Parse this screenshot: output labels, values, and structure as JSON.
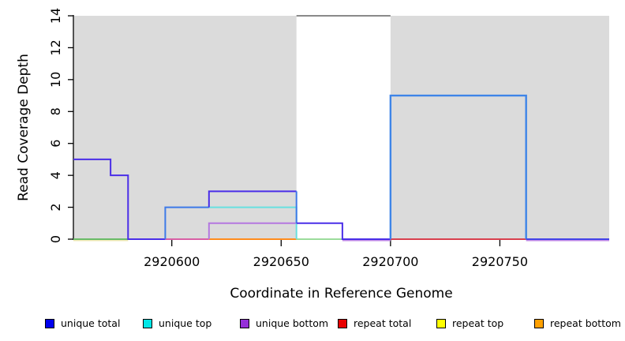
{
  "figure": {
    "background": "#ffffff",
    "shaded_region_color": "#dbdbdb"
  },
  "chart_data": {
    "type": "line",
    "subtype": "step-coverage",
    "title": "",
    "xlabel": "Coordinate in Reference Genome",
    "ylabel": "Read Coverage Depth",
    "xlim": [
      2920555,
      2920800
    ],
    "ylim": [
      0,
      14
    ],
    "grid": false,
    "legend_position": "bottom",
    "x_ticks": [
      {
        "value": 2920600,
        "label": "2920600"
      },
      {
        "value": 2920650,
        "label": "2920650"
      },
      {
        "value": 2920700,
        "label": "2920700"
      },
      {
        "value": 2920750,
        "label": "2920750"
      }
    ],
    "y_ticks": [
      {
        "value": 0,
        "label": "0"
      },
      {
        "value": 2,
        "label": "2"
      },
      {
        "value": 4,
        "label": "4"
      },
      {
        "value": 6,
        "label": "6"
      },
      {
        "value": 8,
        "label": "8"
      },
      {
        "value": 10,
        "label": "10"
      },
      {
        "value": 12,
        "label": "12"
      },
      {
        "value": 14,
        "label": "14"
      }
    ],
    "shaded_regions": [
      {
        "x1": 2920555,
        "x2": 2920657,
        "color": "#dbdbdb"
      },
      {
        "x1": 2920700,
        "x2": 2920800,
        "color": "#dbdbdb"
      }
    ],
    "gap_top_line": {
      "x1": 2920657,
      "x2": 2920700,
      "y": 14,
      "color": "#8a8a8a",
      "width": 2
    },
    "series": [
      {
        "name": "unique total",
        "color": "#0000ee",
        "steps": [
          [
            2920555,
            5
          ],
          [
            2920572,
            4
          ],
          [
            2920580,
            0
          ],
          [
            2920597,
            2
          ],
          [
            2920617,
            3
          ],
          [
            2920657,
            1
          ],
          [
            2920678,
            0
          ],
          [
            2920700,
            9
          ],
          [
            2920762,
            0
          ],
          [
            2920800,
            0
          ]
        ]
      },
      {
        "name": "unique top",
        "color": "#00e6e6",
        "steps": [
          [
            2920555,
            0
          ],
          [
            2920597,
            2
          ],
          [
            2920657,
            0
          ],
          [
            2920800,
            0
          ]
        ]
      },
      {
        "name": "unique bottom",
        "color": "#9530d8",
        "steps": [
          [
            2920555,
            0
          ],
          [
            2920617,
            1
          ],
          [
            2920678,
            0
          ],
          [
            2920800,
            0
          ]
        ]
      },
      {
        "name": "repeat total",
        "color": "#e80000",
        "steps": [
          [
            2920555,
            0
          ],
          [
            2920800,
            0
          ]
        ]
      },
      {
        "name": "repeat top",
        "color": "#ffff00",
        "steps": [
          [
            2920555,
            0
          ],
          [
            2920800,
            0
          ]
        ]
      },
      {
        "name": "repeat bottom",
        "color": "#ffa000",
        "steps": [
          [
            2920555,
            0
          ],
          [
            2920800,
            0
          ]
        ]
      }
    ],
    "visible_segments": [
      {
        "name": "repeat-top-baseline",
        "color": "#efe8b4",
        "width": 1.6,
        "dy": 1.7,
        "points": [
          [
            2920555,
            0
          ],
          [
            2920580,
            0
          ]
        ]
      },
      {
        "name": "baseline-blend-green-left",
        "color": "#69bb69",
        "width": 2,
        "points": [
          [
            2920555,
            0
          ],
          [
            2920580,
            0
          ]
        ]
      },
      {
        "name": "baseline-blend-green-gap",
        "color": "#9cdc9c",
        "width": 2,
        "points": [
          [
            2920657,
            0
          ],
          [
            2920678,
            0
          ]
        ]
      },
      {
        "name": "repeat-total-baseline-pink",
        "color": "#d85fa5",
        "width": 2,
        "points": [
          [
            2920597,
            0
          ],
          [
            2920617,
            0
          ]
        ]
      },
      {
        "name": "repeat-bottom-baseline",
        "color": "#ff8c1e",
        "width": 2,
        "points": [
          [
            2920617,
            0
          ],
          [
            2920657,
            0
          ]
        ]
      },
      {
        "name": "repeat-total-baseline-red",
        "color": "#d8404e",
        "width": 2,
        "points": [
          [
            2920700,
            0
          ],
          [
            2920762,
            0
          ]
        ]
      },
      {
        "name": "unique-bottom-under-a",
        "color": "#c08ae8",
        "width": 1.6,
        "dy": 1.7,
        "points": [
          [
            2920678,
            0
          ],
          [
            2920700,
            0
          ]
        ]
      },
      {
        "name": "unique-bottom-under-b",
        "color": "#c08ae8",
        "width": 1.6,
        "dy": 1.7,
        "points": [
          [
            2920762,
            0
          ],
          [
            2920800,
            0
          ]
        ]
      },
      {
        "name": "unique-bottom-step",
        "color": "#b478e0",
        "width": 2,
        "points": [
          [
            2920617,
            0
          ],
          [
            2920617,
            1
          ],
          [
            2920657,
            1
          ]
        ]
      },
      {
        "name": "unique-top-step",
        "color": "#68e0e0",
        "width": 2,
        "points": [
          [
            2920617,
            2
          ],
          [
            2920657,
            2
          ],
          [
            2920657,
            0
          ]
        ]
      },
      {
        "name": "unique-total-left-steps",
        "color": "#4a2ee8",
        "width": 2,
        "points": [
          [
            2920555,
            5
          ],
          [
            2920572,
            5
          ],
          [
            2920572,
            4
          ],
          [
            2920580,
            4
          ],
          [
            2920580,
            0
          ],
          [
            2920597,
            0
          ]
        ]
      },
      {
        "name": "unique-total-rise-2",
        "color": "#3e7ae8",
        "width": 2,
        "points": [
          [
            2920597,
            0
          ],
          [
            2920597,
            2
          ],
          [
            2920617,
            2
          ]
        ]
      },
      {
        "name": "unique-total-step-3",
        "color": "#4a2ee8",
        "width": 2,
        "points": [
          [
            2920617,
            2
          ],
          [
            2920617,
            3
          ],
          [
            2920657,
            3
          ]
        ]
      },
      {
        "name": "unique-total-drop-3-1",
        "color": "#3e7ae8",
        "width": 2,
        "points": [
          [
            2920657,
            3
          ],
          [
            2920657,
            1
          ]
        ]
      },
      {
        "name": "unique-total-step-1-0",
        "color": "#4a2ee8",
        "width": 2,
        "points": [
          [
            2920657,
            1
          ],
          [
            2920678,
            1
          ],
          [
            2920678,
            0
          ],
          [
            2920700,
            0
          ]
        ]
      },
      {
        "name": "unique-total-box-9",
        "color": "#3e85e8",
        "width": 2.4,
        "points": [
          [
            2920700,
            0
          ],
          [
            2920700,
            9
          ],
          [
            2920762,
            9
          ],
          [
            2920762,
            0
          ]
        ]
      },
      {
        "name": "unique-total-end",
        "color": "#4343e8",
        "width": 2,
        "points": [
          [
            2920762,
            0
          ],
          [
            2920800,
            0
          ]
        ]
      }
    ],
    "legend": [
      {
        "label": "unique total",
        "color": "#0000ee"
      },
      {
        "label": "unique top",
        "color": "#00e6e6"
      },
      {
        "label": "unique bottom",
        "color": "#9530d8"
      },
      {
        "label": "repeat total",
        "color": "#e80000"
      },
      {
        "label": "repeat top",
        "color": "#ffff00"
      },
      {
        "label": "repeat bottom",
        "color": "#ffa000"
      }
    ]
  }
}
